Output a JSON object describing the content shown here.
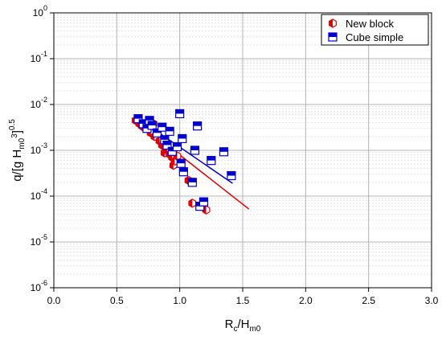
{
  "chart_data": {
    "type": "scatter",
    "xlim": [
      0.0,
      3.0
    ],
    "ylim_exponent": [
      -6,
      0
    ],
    "yscale": "log",
    "grid": true,
    "legend_position": "top-right",
    "x_ticks": [
      "0.0",
      "0.5",
      "1.0",
      "1.5",
      "2.0",
      "2.5",
      "3.0"
    ],
    "y_ticks": [
      {
        "base": "10",
        "exp": "0"
      },
      {
        "base": "10",
        "exp": "-1"
      },
      {
        "base": "10",
        "exp": "-2"
      },
      {
        "base": "10",
        "exp": "-3"
      },
      {
        "base": "10",
        "exp": "-4"
      },
      {
        "base": "10",
        "exp": "-5"
      },
      {
        "base": "10",
        "exp": "-6"
      }
    ],
    "xlabel": {
      "main": "R",
      "sub1": "c",
      "mid": "/H",
      "sub2": "m0"
    },
    "ylabel": {
      "main": "q/[g H",
      "sub": "m0",
      "sup": "3",
      "end": "]",
      "exp": "0.5"
    },
    "series": [
      {
        "name": "New block",
        "color": "#e00000",
        "marker": "hexagon-half",
        "points": [
          [
            0.65,
            0.0045
          ],
          [
            0.68,
            0.0038
          ],
          [
            0.7,
            0.0034
          ],
          [
            0.72,
            0.0031
          ],
          [
            0.74,
            0.0033
          ],
          [
            0.76,
            0.0028
          ],
          [
            0.77,
            0.0024
          ],
          [
            0.79,
            0.0038
          ],
          [
            0.8,
            0.002
          ],
          [
            0.84,
            0.0016
          ],
          [
            0.86,
            0.0013
          ],
          [
            0.88,
            0.0012
          ],
          [
            0.88,
            0.00088
          ],
          [
            0.9,
            0.001
          ],
          [
            0.92,
            0.00082
          ],
          [
            0.94,
            0.0007
          ],
          [
            0.95,
            0.00047
          ],
          [
            0.96,
            0.00058
          ],
          [
            0.98,
            0.00075
          ],
          [
            1.07,
            0.00022
          ],
          [
            1.1,
            7e-05
          ],
          [
            1.21,
            5e-05
          ]
        ],
        "fit": {
          "x": [
            0.65,
            1.55
          ],
          "y": [
            0.0045,
            5.2e-05
          ]
        }
      },
      {
        "name": "Cube simple",
        "color": "#0000cc",
        "marker": "square-half",
        "points": [
          [
            0.67,
            0.0049
          ],
          [
            0.71,
            0.0038
          ],
          [
            0.74,
            0.003
          ],
          [
            0.76,
            0.0045
          ],
          [
            0.78,
            0.0035
          ],
          [
            0.82,
            0.0024
          ],
          [
            0.86,
            0.0032
          ],
          [
            0.88,
            0.0017
          ],
          [
            0.9,
            0.0013
          ],
          [
            0.92,
            0.0026
          ],
          [
            0.94,
            0.00095
          ],
          [
            0.98,
            0.0012
          ],
          [
            1.0,
            0.0063
          ],
          [
            1.01,
            0.00052
          ],
          [
            1.02,
            0.0018
          ],
          [
            1.03,
            0.00034
          ],
          [
            1.1,
            0.0002
          ],
          [
            1.12,
            0.001
          ],
          [
            1.14,
            0.0034
          ],
          [
            1.16,
            6e-05
          ],
          [
            1.19,
            7.5e-05
          ],
          [
            1.25,
            0.0006
          ],
          [
            1.35,
            0.00093
          ],
          [
            1.41,
            0.00028
          ]
        ],
        "fit": {
          "x": [
            0.67,
            1.42
          ],
          "y": [
            0.0049,
            0.00019
          ]
        }
      }
    ]
  }
}
